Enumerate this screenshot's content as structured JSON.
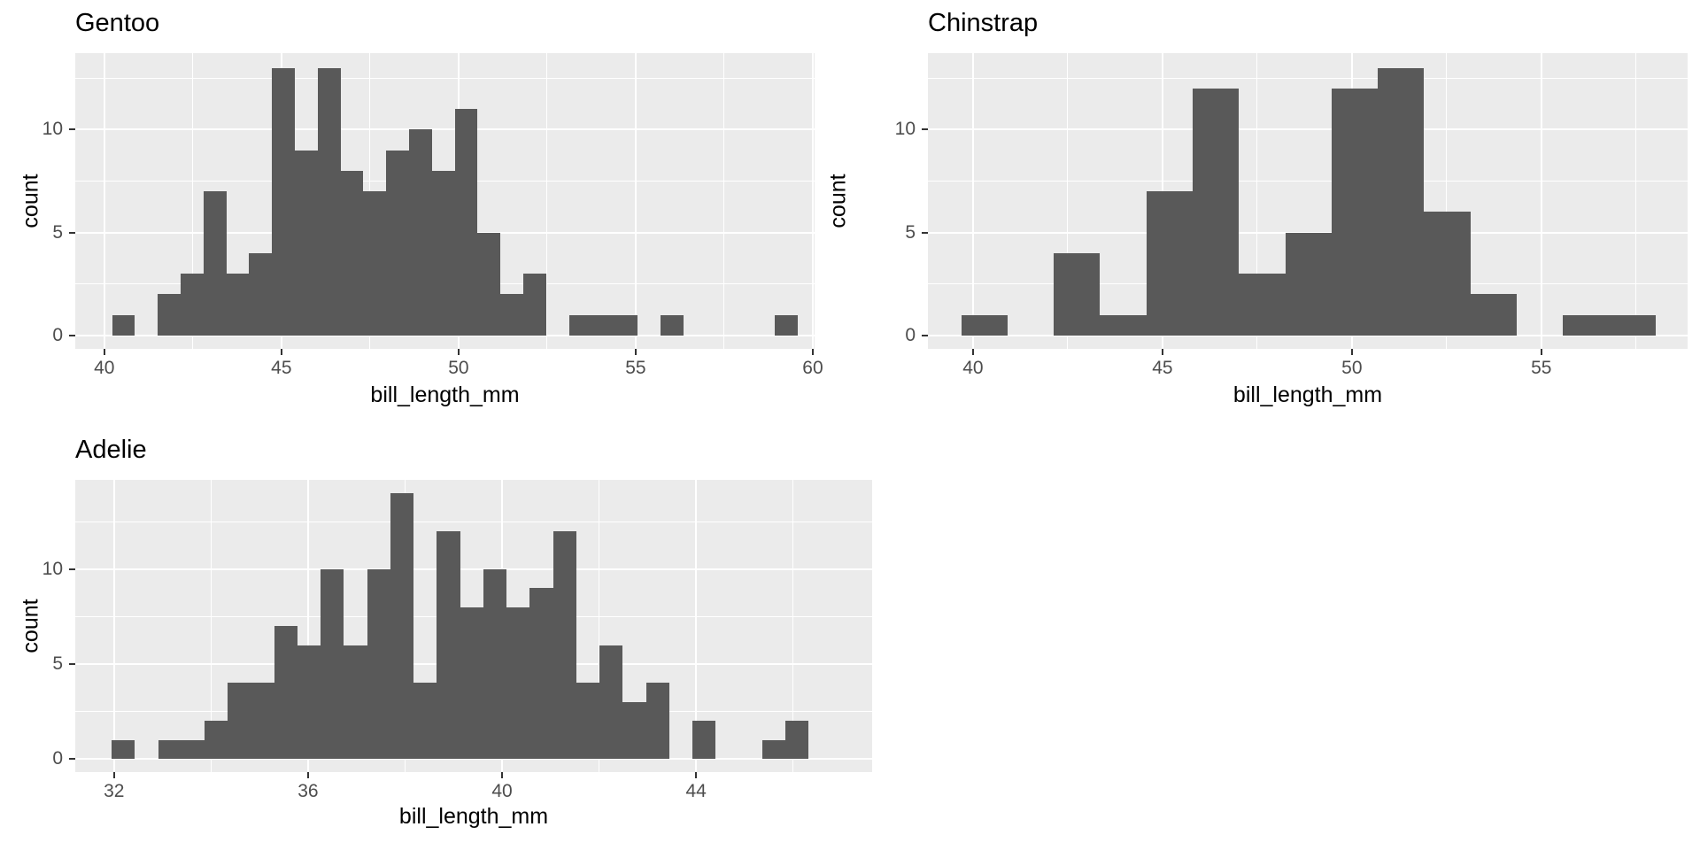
{
  "figure": {
    "description": "Three histograms of penguin bill length by species",
    "colors": {
      "bar_fill": "#595959",
      "panel_background": "#EBEBEB",
      "gridline": "#FFFFFF",
      "tick_mark": "#333333",
      "tick_label": "#4D4D4D",
      "text": "#000000",
      "plot_background": "#FFFFFF"
    }
  },
  "chart_data": [
    {
      "type": "bar",
      "subtype": "histogram",
      "title": "Gentoo",
      "xlabel": "bill_length_mm",
      "ylabel": "count",
      "bin_start": 40.22,
      "bin_width": 0.6448,
      "counts": [
        1,
        0,
        2,
        3,
        7,
        3,
        4,
        13,
        9,
        13,
        8,
        7,
        9,
        10,
        8,
        11,
        5,
        2,
        3,
        0,
        1,
        1,
        1,
        0,
        1,
        0,
        0,
        0,
        0,
        1
      ],
      "x_ticks": [
        40,
        45,
        50,
        55,
        60
      ],
      "y_ticks": [
        0,
        5,
        10
      ],
      "xlim": [
        39.18,
        60.05
      ],
      "ylim": [
        -0.65,
        13.72
      ],
      "grid": true,
      "legend": "none"
    },
    {
      "type": "bar",
      "subtype": "histogram",
      "title": "Chinstrap",
      "xlabel": "bill_length_mm",
      "ylabel": "count",
      "bin_start": 39.69,
      "bin_width": 1.2214,
      "counts": [
        1,
        0,
        4,
        1,
        7,
        12,
        3,
        5,
        12,
        13,
        6,
        2,
        0,
        1,
        1
      ],
      "x_ticks": [
        40,
        45,
        50,
        55
      ],
      "y_ticks": [
        0,
        5,
        10
      ],
      "xlim": [
        38.81,
        58.86
      ],
      "ylim": [
        -0.65,
        13.72
      ],
      "grid": true,
      "legend": "none"
    },
    {
      "type": "bar",
      "subtype": "histogram",
      "title": "Adelie",
      "xlabel": "bill_length_mm",
      "ylabel": "count",
      "bin_start": 31.95,
      "bin_width": 0.479,
      "counts": [
        1,
        0,
        1,
        1,
        2,
        4,
        4,
        7,
        6,
        10,
        6,
        10,
        14,
        4,
        12,
        8,
        10,
        8,
        9,
        12,
        4,
        6,
        3,
        4,
        0,
        2,
        0,
        0,
        1,
        2
      ],
      "x_ticks": [
        32,
        36,
        40,
        44
      ],
      "y_ticks": [
        0,
        5,
        10
      ],
      "xlim": [
        31.2,
        47.63
      ],
      "ylim": [
        -0.7,
        14.72
      ],
      "grid": true,
      "legend": "none"
    }
  ]
}
